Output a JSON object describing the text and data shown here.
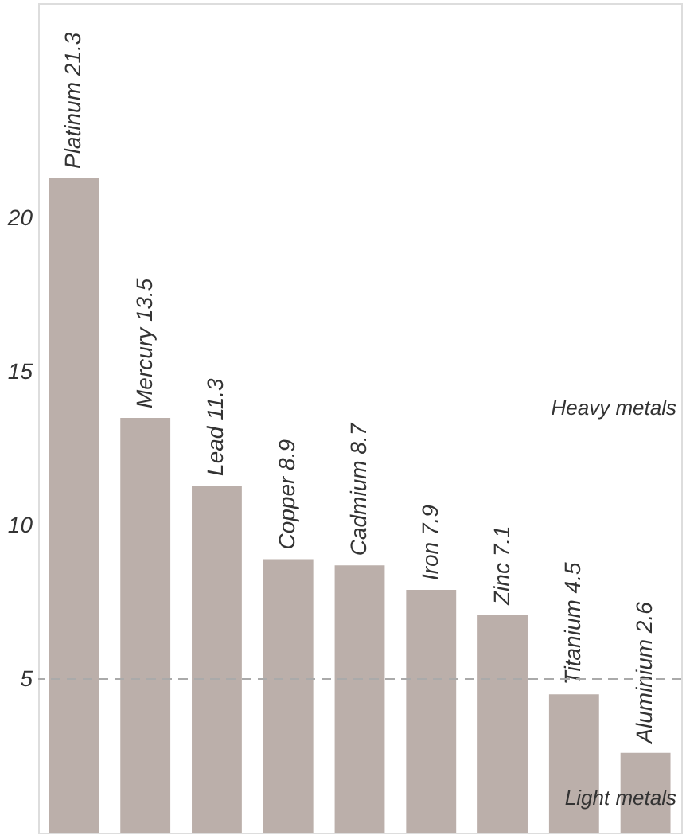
{
  "chart_data": {
    "type": "bar",
    "categories": [
      "Platinum 21.3",
      "Mercury 13.5",
      "Lead 11.3",
      "Copper 8.9",
      "Cadmium 8.7",
      "Iron 7.9",
      "Zinc 7.1",
      "Titanium 4.5",
      "Aluminium 2.6"
    ],
    "values": [
      21.3,
      13.5,
      11.3,
      8.9,
      8.7,
      7.9,
      7.1,
      4.5,
      2.6
    ],
    "color": "#bbafaa",
    "ylim": [
      0,
      27
    ],
    "yticks": [
      5,
      10,
      15,
      20
    ],
    "tick_labels": "y",
    "grid": false,
    "ref_lines": [
      {
        "axis": "y",
        "value": 5,
        "color": "#aaaaaa",
        "line_style": "dashed"
      }
    ],
    "annotations": [
      "Heavy metals",
      "Light metals"
    ]
  }
}
